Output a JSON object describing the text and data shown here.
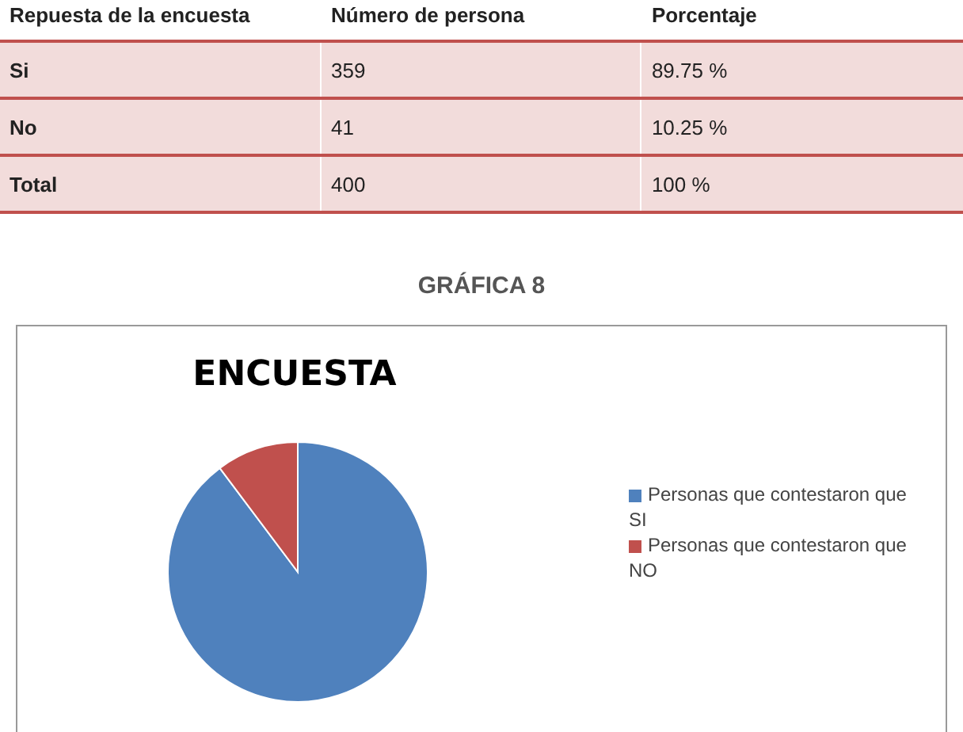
{
  "chart_data": {
    "type": "pie",
    "title": "ENCUESTA",
    "subtitle": "GRÁFICA 8",
    "categories": [
      "Personas que contestaron que SI",
      "Personas que contestaron que NO"
    ],
    "values": [
      89.75,
      10.25
    ],
    "colors": [
      "#4f81bd",
      "#c0504d"
    ],
    "legend": "right",
    "annotations": [
      "Repuesta de la encuesta",
      "Número de persona",
      "Porcentaje",
      "Si",
      "359",
      "89.75 %",
      "No",
      "41",
      "10.25 %",
      "Total",
      "400",
      "100 %"
    ]
  }
}
